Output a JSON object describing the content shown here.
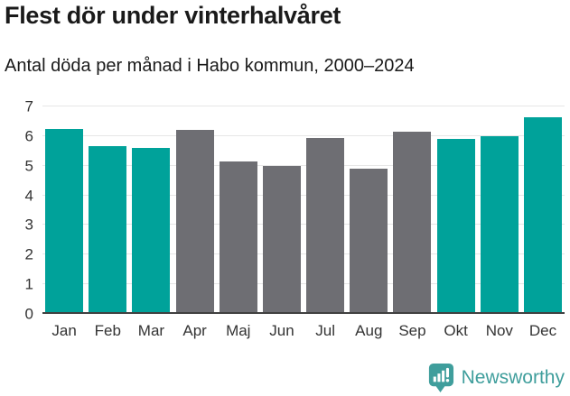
{
  "header": {
    "title": "Flest dör under vinterhalvåret",
    "subtitle": "Antal döda per månad i Habo kommun, 2000–2024"
  },
  "chart_data": {
    "type": "bar",
    "title": "Flest dör under vinterhalvåret",
    "subtitle": "Antal döda per månad i Habo kommun, 2000–2024",
    "categories": [
      "Jan",
      "Feb",
      "Mar",
      "Apr",
      "Maj",
      "Jun",
      "Jul",
      "Aug",
      "Sep",
      "Okt",
      "Nov",
      "Dec"
    ],
    "values": [
      6.25,
      5.65,
      5.6,
      6.2,
      5.15,
      5.0,
      5.95,
      4.9,
      6.15,
      5.9,
      6.0,
      6.65
    ],
    "bar_colors": [
      "#00a29a",
      "#00a29a",
      "#00a29a",
      "#6e6e73",
      "#6e6e73",
      "#6e6e73",
      "#6e6e73",
      "#6e6e73",
      "#6e6e73",
      "#00a29a",
      "#00a29a",
      "#00a29a"
    ],
    "winter_color": "#00a29a",
    "summer_color": "#6e6e73",
    "xlabel": "",
    "ylabel": "",
    "ylim": [
      0,
      7
    ],
    "yticks": [
      0,
      1,
      2,
      3,
      4,
      5,
      6,
      7
    ],
    "grid": true,
    "legend": "none",
    "gridline_color": "#e6e6e6",
    "axis_line_color": "#404040"
  },
  "footer": {
    "brand": "Newsworthy",
    "brand_color": "#3f9e9c",
    "logo_icon": "bar-chart-speech-bubble"
  }
}
